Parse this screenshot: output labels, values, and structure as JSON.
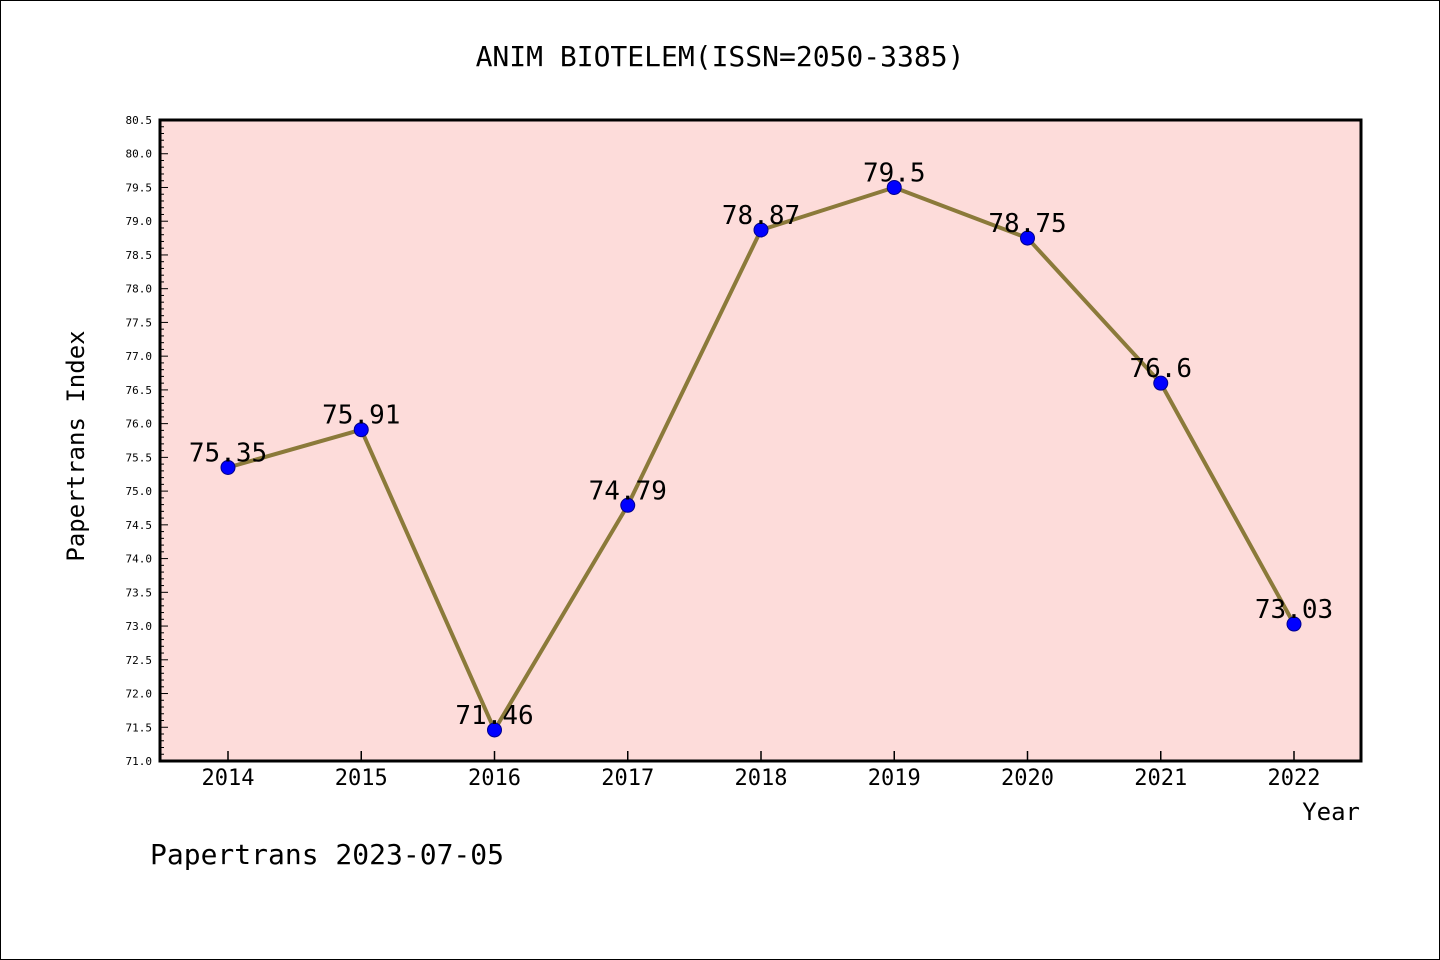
{
  "chart_data": {
    "type": "line",
    "title": "ANIM BIOTELEM(ISSN=2050-3385)",
    "xlabel": "Year",
    "ylabel": "Papertrans Index",
    "categories": [
      "2014",
      "2015",
      "2016",
      "2017",
      "2018",
      "2019",
      "2020",
      "2021",
      "2022"
    ],
    "values": [
      75.35,
      75.91,
      71.46,
      74.79,
      78.87,
      79.5,
      78.75,
      76.6,
      73.03
    ],
    "data_labels": [
      "75.35",
      "75.91",
      "71.46",
      "74.79",
      "78.87",
      "79.5",
      "78.75",
      "76.6",
      "73.03"
    ],
    "ylim": [
      71.0,
      80.5
    ],
    "yticks": [
      "71.0",
      "71.5",
      "72.0",
      "72.5",
      "73.0",
      "73.5",
      "74.0",
      "74.5",
      "75.0",
      "75.5",
      "76.0",
      "76.5",
      "77.0",
      "77.5",
      "78.0",
      "78.5",
      "79.0",
      "79.5",
      "80.0",
      "80.5"
    ],
    "grid": false,
    "colors": {
      "plot_background": "#fddcda",
      "line": "#8b7a3a",
      "marker": "#0000ff",
      "marker_edge": "#00008b"
    }
  },
  "footer": {
    "text": "Papertrans 2023-07-05"
  }
}
